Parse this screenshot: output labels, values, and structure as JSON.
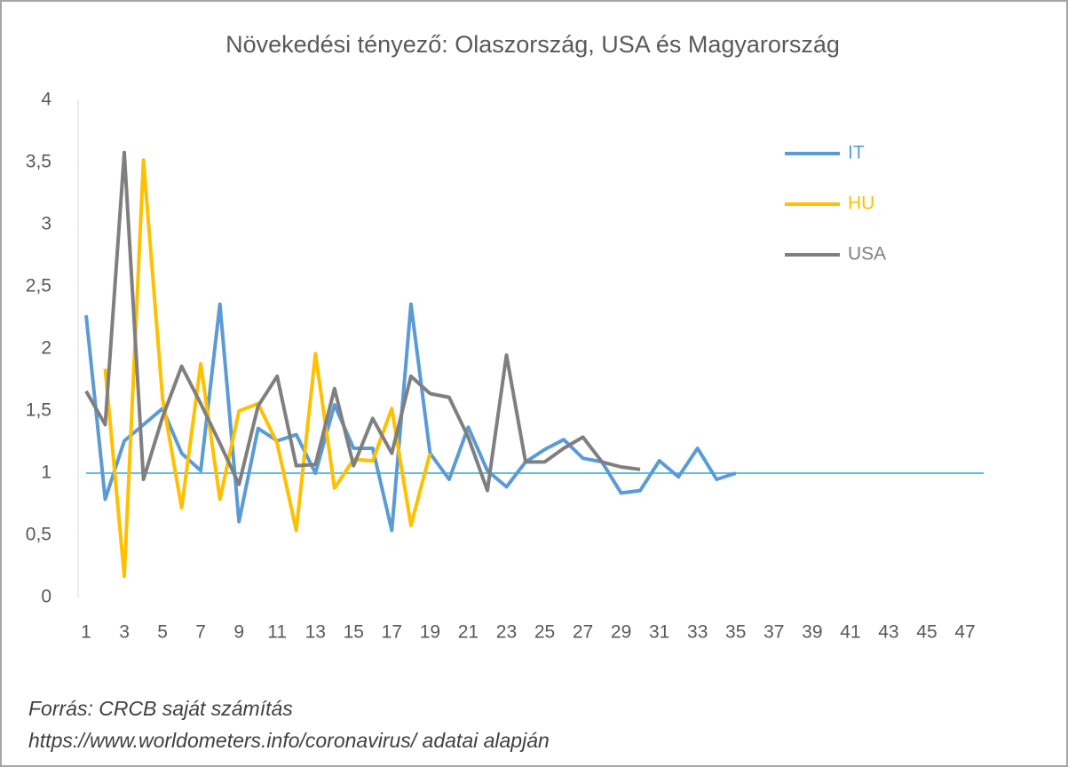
{
  "chart_data": {
    "type": "line",
    "title": "Növekedési tényező: Olaszország, USA és Magyarország",
    "categories": [
      1,
      null,
      3,
      null,
      5,
      null,
      7,
      null,
      9,
      null,
      11,
      null,
      13,
      null,
      15,
      null,
      17,
      null,
      19,
      null,
      21,
      null,
      23,
      null,
      25,
      null,
      27,
      null,
      29,
      null,
      31,
      null,
      33,
      null,
      35,
      null,
      37,
      null,
      39,
      null,
      41,
      null,
      43,
      null,
      45,
      null,
      47
    ],
    "series": [
      {
        "name": "IT",
        "color": "#5b9bd5",
        "values": [
          2.27,
          0.79,
          1.26,
          1.39,
          1.52,
          1.16,
          1.02,
          2.36,
          0.61,
          1.36,
          1.26,
          1.31,
          1.0,
          1.55,
          1.2,
          1.2,
          0.54,
          2.36,
          1.16,
          0.95,
          1.37,
          1.02,
          0.89,
          1.09,
          1.19,
          1.27,
          1.12,
          1.09,
          0.84,
          0.86,
          1.1,
          0.97,
          1.2,
          0.95,
          1.0,
          null,
          null,
          null,
          null,
          null,
          null,
          null,
          null,
          null,
          null,
          null,
          null
        ]
      },
      {
        "name": "HU",
        "color": "#ffc000",
        "values": [
          null,
          1.84,
          0.17,
          3.52,
          1.6,
          0.72,
          1.88,
          0.79,
          1.5,
          1.56,
          1.24,
          0.54,
          1.96,
          0.88,
          1.11,
          1.1,
          1.52,
          0.58,
          1.16,
          null,
          null,
          null,
          null,
          null,
          null,
          null,
          null,
          null,
          null,
          null,
          null,
          null,
          null,
          null,
          null,
          null,
          null,
          null,
          null,
          null,
          null,
          null,
          null,
          null,
          null,
          null,
          null
        ]
      },
      {
        "name": "USA",
        "color": "#7f7f7f",
        "values": [
          1.66,
          1.39,
          3.58,
          0.95,
          1.45,
          1.86,
          1.56,
          1.24,
          0.91,
          1.54,
          1.78,
          1.06,
          1.07,
          1.68,
          1.06,
          1.44,
          1.16,
          1.78,
          1.64,
          1.61,
          1.29,
          0.86,
          1.95,
          1.09,
          1.09,
          1.2,
          1.29,
          1.09,
          1.05,
          1.03,
          null,
          null,
          null,
          null,
          null,
          null,
          null,
          null,
          null,
          null,
          null,
          null,
          null,
          null,
          null,
          null,
          null
        ]
      }
    ],
    "reference_line": {
      "value": 1,
      "color": "#2aa9e0"
    },
    "ylim": [
      0,
      4
    ],
    "yticks": [
      0,
      {
        "value": 0.5,
        "label": "0,5"
      },
      1,
      {
        "value": 1.5,
        "label": "1,5"
      },
      2,
      {
        "value": 2.5,
        "label": "2,5"
      },
      3,
      {
        "value": 3.5,
        "label": "3,5"
      },
      4
    ],
    "legend": "upper right",
    "grid": false,
    "source": [
      "Forrás: CRCB saját számítás",
      "https://www.worldometers.info/coronavirus/ adatai alapján"
    ]
  }
}
